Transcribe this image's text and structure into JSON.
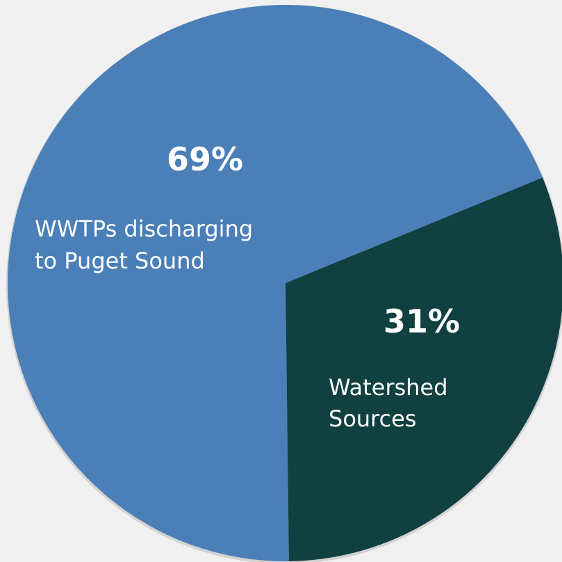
{
  "chart_data": {
    "type": "pie",
    "title": "",
    "slices": [
      {
        "label_lines": [
          "WWTPs discharging",
          "to Puget Sound"
        ],
        "value": 69,
        "value_label": "69%",
        "color": "#4a7fb8"
      },
      {
        "label_lines": [
          "Watershed",
          "Sources"
        ],
        "value": 31,
        "value_label": "31%",
        "color": "#114040"
      }
    ],
    "legend": "none"
  },
  "colors": {
    "background": "#f0f0f0",
    "label_text": "#ffffff"
  }
}
